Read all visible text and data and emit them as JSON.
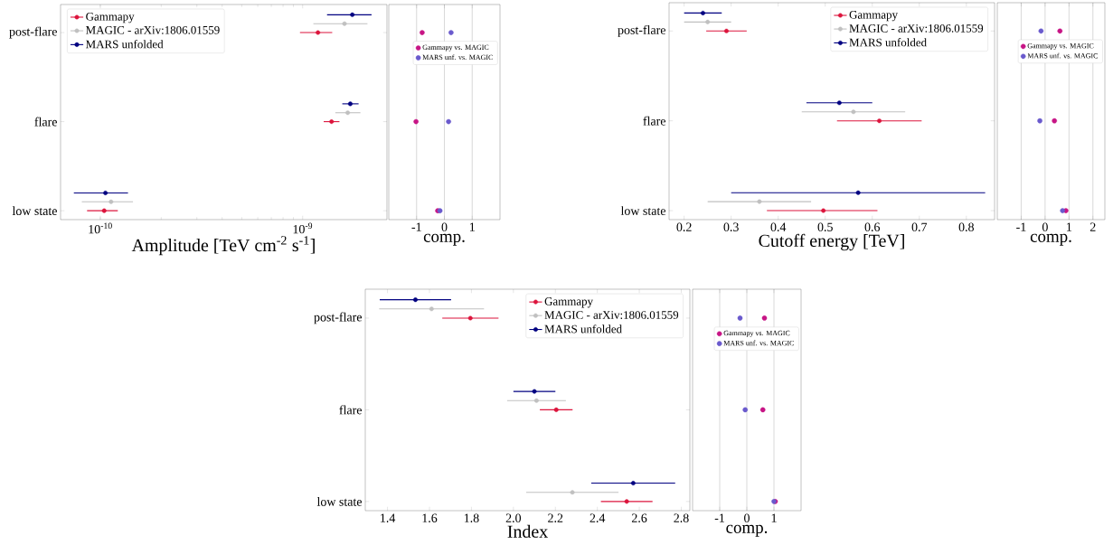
{
  "chart_data": [
    {
      "type": "scatter",
      "orientation": "horizontal",
      "log": "x",
      "marker": "circle",
      "legend": "top left",
      "xlabel": "Amplitude [TeV cm$^{-2}$ s$^{-1}$]",
      "categories": [
        "post-flare",
        "flare",
        "low state"
      ],
      "xlim": [
        6.36e-11,
        2.61e-09
      ],
      "xticks": [
        {
          "value": 1e-10,
          "label": "10$^{-10}$"
        },
        {
          "value": 1e-09,
          "label": "10$^{-9}$"
        }
      ],
      "series": [
        {
          "name": "Gammapy",
          "color": "#dc143c",
          "values": [
            1.19e-09,
            1.39e-09,
            1.045e-10
          ],
          "errors": [
            [
              9.7e-10,
              1.4e-09
            ],
            [
              1.27e-09,
              1.52e-09
            ],
            [
              8.6e-11,
              1.22e-10
            ]
          ]
        },
        {
          "name": "MAGIC - arXiv:1806.01559",
          "color": "#c0c0c0",
          "values": [
            1.61e-09,
            1.67e-09,
            1.13e-10
          ],
          "errors": [
            [
              1.13e-09,
              2.09e-09
            ],
            [
              1.45e-09,
              1.93e-09
            ],
            [
              8.1e-11,
              1.45e-10
            ]
          ]
        },
        {
          "name": "MARS unfolded",
          "color": "#000080",
          "values": [
            1.76e-09,
            1.72e-09,
            1.06e-10
          ],
          "errors": [
            [
              1.32e-09,
              2.19e-09
            ],
            [
              1.57e-09,
              1.89e-09
            ],
            [
              7.4e-11,
              1.37e-10
            ]
          ]
        }
      ]
    },
    {
      "type": "scatter",
      "orientation": "horizontal",
      "marker": "circle",
      "legend": "top right",
      "grid": "x",
      "tick_labels": "x",
      "xlabel": "comp.",
      "categories": [
        null,
        null,
        null
      ],
      "xlim": [
        -2,
        2
      ],
      "xticks": [
        -1,
        0,
        1
      ],
      "series": [
        {
          "name": "Gammapy vs. MAGIC",
          "color": "#c71585",
          "values": [
            -0.8,
            -1.02,
            -0.24
          ]
        },
        {
          "name": "MARS unf. vs. MAGIC",
          "color": "#6a5acd",
          "values": [
            0.24,
            0.15,
            -0.16
          ]
        }
      ]
    },
    {
      "type": "scatter",
      "orientation": "horizontal",
      "marker": "circle",
      "legend": "top right",
      "xlabel": "Cutoff energy [TeV]",
      "categories": [
        "post-flare",
        "flare",
        "low state"
      ],
      "xlim": [
        0.168,
        0.86
      ],
      "xticks": [
        0.2,
        0.3,
        0.4,
        0.5,
        0.6,
        0.7,
        0.8
      ],
      "series": [
        {
          "name": "Gammapy",
          "color": "#dc143c",
          "values": [
            0.29,
            0.615,
            0.496
          ],
          "errors": [
            [
              0.247,
              0.333
            ],
            [
              0.525,
              0.705
            ],
            [
              0.376,
              0.611
            ]
          ]
        },
        {
          "name": "MAGIC - arXiv:1806.01559",
          "color": "#c0c0c0",
          "values": [
            0.25,
            0.56,
            0.36
          ],
          "errors": [
            [
              0.2,
              0.3
            ],
            [
              0.45,
              0.67
            ],
            [
              0.25,
              0.47
            ]
          ]
        },
        {
          "name": "MARS unfolded",
          "color": "#000080",
          "values": [
            0.24,
            0.53,
            0.57
          ],
          "errors": [
            [
              0.2,
              0.28
            ],
            [
              0.46,
              0.6
            ],
            [
              0.3,
              0.84
            ]
          ]
        }
      ]
    },
    {
      "type": "scatter",
      "orientation": "horizontal",
      "marker": "circle",
      "legend": "top right",
      "grid": "x",
      "tick_labels": "x",
      "xlabel": "comp.",
      "categories": [
        null,
        null,
        null
      ],
      "xlim": [
        -2,
        2.5
      ],
      "xticks": [
        -1,
        0,
        1,
        2
      ],
      "series": [
        {
          "name": "Gammapy vs. MAGIC",
          "color": "#c71585",
          "values": [
            0.62,
            0.39,
            0.87
          ]
        },
        {
          "name": "MARS unf. vs. MAGIC",
          "color": "#6a5acd",
          "values": [
            -0.17,
            -0.22,
            0.73
          ]
        }
      ]
    },
    {
      "type": "scatter",
      "orientation": "horizontal",
      "marker": "circle",
      "legend": "top right",
      "xlabel": "Index",
      "categories": [
        "post-flare",
        "flare",
        "low state"
      ],
      "xlim": [
        1.294,
        2.841
      ],
      "xticks": [
        1.4,
        1.6,
        1.8,
        {
          "value": 2,
          "label": "2.0"
        },
        2.2,
        2.4,
        2.6,
        2.8
      ],
      "series": [
        {
          "name": "Gammapy",
          "color": "#dc143c",
          "values": [
            1.795,
            2.204,
            2.54
          ],
          "errors": [
            [
              1.661,
              1.929
            ],
            [
              2.126,
              2.282
            ],
            [
              2.417,
              2.663
            ]
          ]
        },
        {
          "name": "MAGIC - arXiv:1806.01559",
          "color": "#c0c0c0",
          "values": [
            1.61,
            2.11,
            2.281
          ],
          "errors": [
            [
              1.36,
              1.86
            ],
            [
              1.97,
              2.25
            ],
            [
              2.061,
              2.501
            ]
          ]
        },
        {
          "name": "MARS unfolded",
          "color": "#000080",
          "values": [
            1.533,
            2.1,
            2.571
          ],
          "errors": [
            [
              1.363,
              1.703
            ],
            [
              2.0,
              2.2
            ],
            [
              2.371,
              2.771
            ]
          ]
        }
      ]
    },
    {
      "type": "scatter",
      "orientation": "horizontal",
      "marker": "circle",
      "legend": "top right",
      "grid": "x",
      "tick_labels": "x",
      "xlabel": "comp.",
      "categories": [
        null,
        null,
        null
      ],
      "xlim": [
        -2,
        2
      ],
      "xticks": [
        -1,
        0,
        1
      ],
      "series": [
        {
          "name": "Gammapy vs. MAGIC",
          "color": "#c71585",
          "values": [
            0.65,
            0.59,
            1.05
          ]
        },
        {
          "name": "MARS unf. vs. MAGIC",
          "color": "#6a5acd",
          "values": [
            -0.25,
            -0.06,
            1.0
          ]
        }
      ]
    }
  ]
}
